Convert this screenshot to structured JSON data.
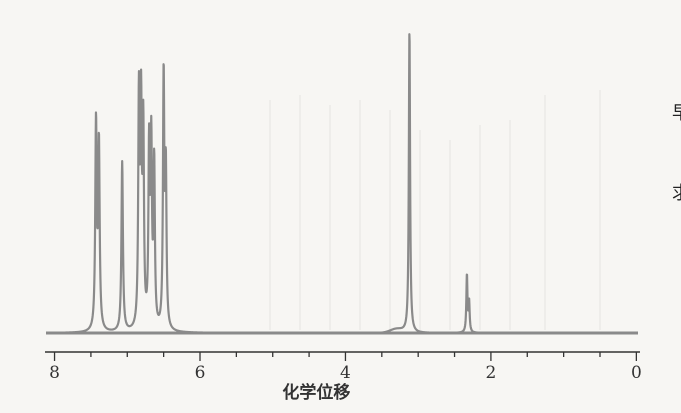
{
  "chart_data": {
    "type": "line",
    "title": "",
    "xlabel": "化学位移",
    "ylabel": "",
    "xlim": [
      8.2,
      -0.05
    ],
    "x_reversed": true,
    "ylim": [
      0,
      1
    ],
    "grid": false,
    "xticks": [
      8,
      6,
      4,
      2,
      0
    ],
    "xtick_labels": [
      "8",
      "6",
      "4",
      "2",
      "0"
    ],
    "series": [
      {
        "color": "#8a8a8a",
        "peaks": [
          {
            "x": 7.43,
            "y": 0.68,
            "w": 0.012
          },
          {
            "x": 7.39,
            "y": 0.61,
            "w": 0.012
          },
          {
            "x": 7.07,
            "y": 0.56,
            "w": 0.012
          },
          {
            "x": 6.84,
            "y": 0.75,
            "w": 0.011
          },
          {
            "x": 6.81,
            "y": 0.69,
            "w": 0.011
          },
          {
            "x": 6.78,
            "y": 0.64,
            "w": 0.011
          },
          {
            "x": 6.7,
            "y": 0.58,
            "w": 0.011
          },
          {
            "x": 6.67,
            "y": 0.59,
            "w": 0.011
          },
          {
            "x": 6.63,
            "y": 0.54,
            "w": 0.011
          },
          {
            "x": 6.5,
            "y": 0.83,
            "w": 0.011
          },
          {
            "x": 6.47,
            "y": 0.51,
            "w": 0.011
          },
          {
            "x": 3.12,
            "y": 1.0,
            "w": 0.01
          },
          {
            "x": 2.33,
            "y": 0.19,
            "w": 0.009
          },
          {
            "x": 2.3,
            "y": 0.1,
            "w": 0.009
          }
        ]
      }
    ]
  },
  "edge_chars": [
    "早",
    "求"
  ]
}
